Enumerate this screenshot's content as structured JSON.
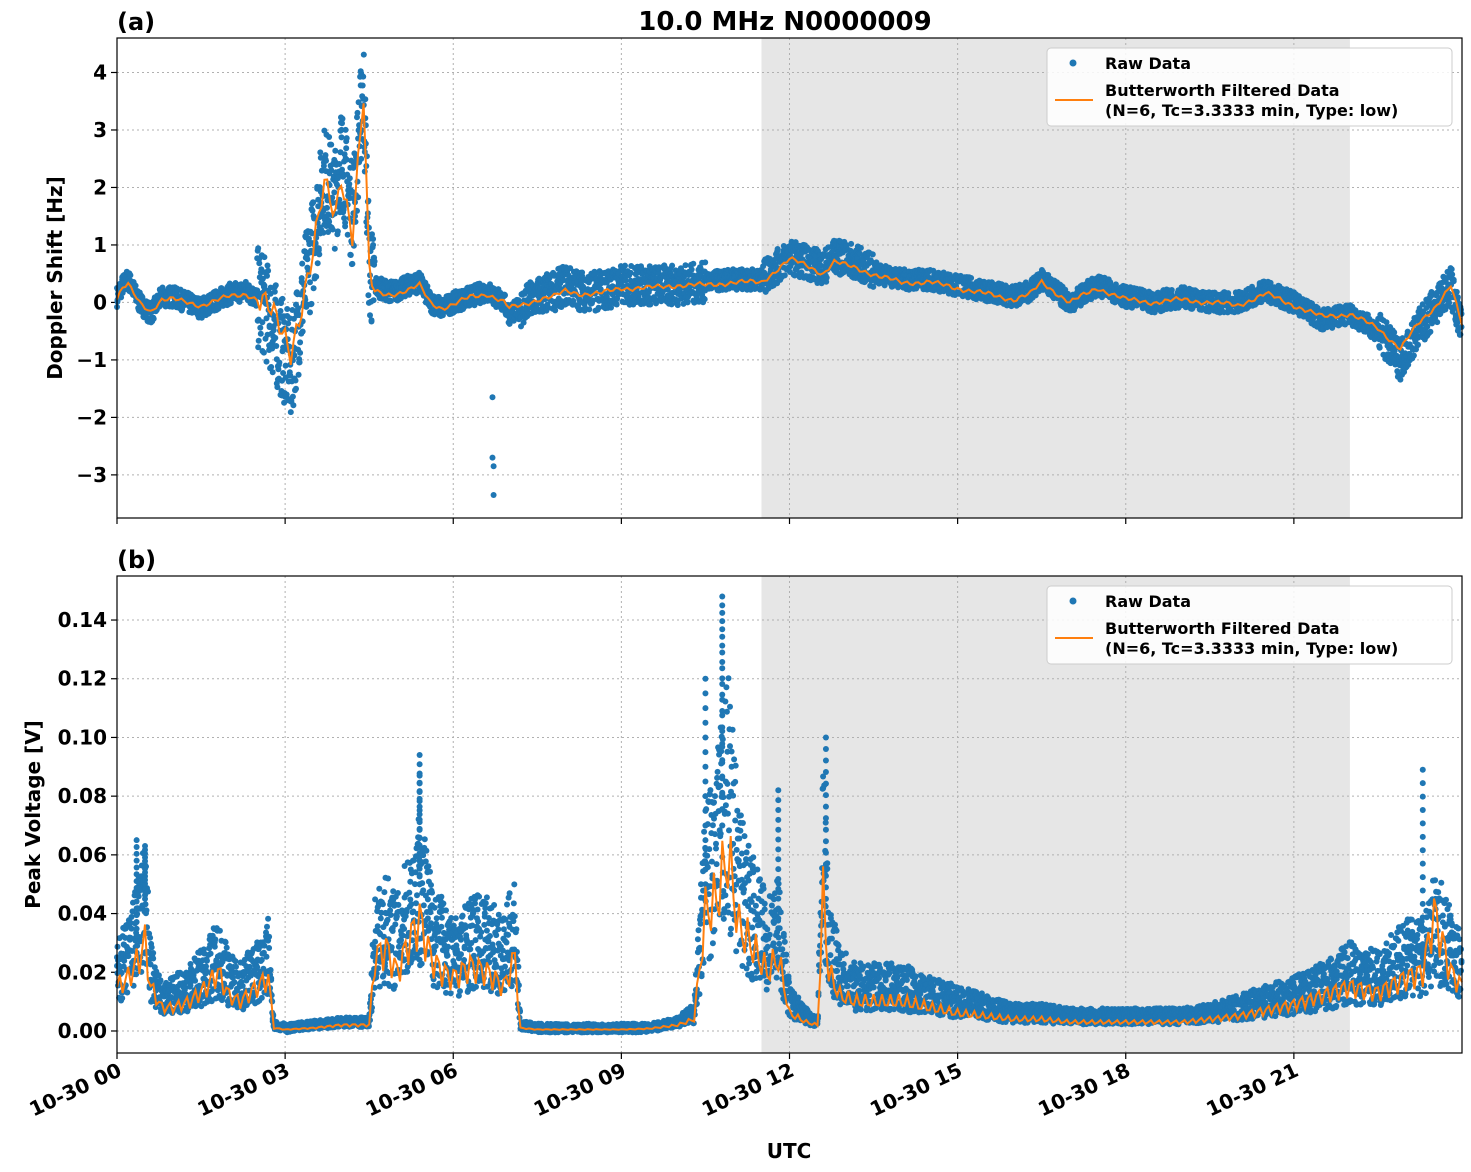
{
  "figure": {
    "title": "10.0 MHz N0000009",
    "xlabel": "UTC"
  },
  "chart_data": [
    {
      "type": "line",
      "panel_label": "(a)",
      "title": "10.0 MHz N0000009",
      "xlabel": "UTC",
      "ylabel": "Doppler Shift [Hz]",
      "x_unit": "hours since 10-30 00 UTC",
      "xlim": [
        0,
        24
      ],
      "ylim": [
        -3.75,
        4.6
      ],
      "yticks": [
        -3,
        -2,
        -1,
        0,
        1,
        2,
        3,
        4
      ],
      "ytick_labels": [
        "−3",
        "−2",
        "−1",
        "0",
        "1",
        "2",
        "3",
        "4"
      ],
      "grid": true,
      "legend_position": "top-right",
      "shaded_region": [
        11.5,
        22.0
      ],
      "series": [
        {
          "name": "Raw Data",
          "style": "scatter",
          "color": "#1f77b4",
          "x": [
            0,
            0.1,
            0.2,
            0.4,
            0.6,
            0.8,
            1.0,
            1.5,
            2.0,
            2.3,
            2.6,
            2.8,
            3.0,
            3.1,
            3.3,
            3.5,
            3.7,
            3.9,
            4.0,
            4.2,
            4.4,
            4.5,
            4.6,
            4.8,
            5.0,
            5.2,
            5.4,
            5.6,
            5.8,
            6.0,
            6.3,
            6.6,
            6.9,
            7.0,
            7.2,
            7.5,
            7.8,
            8.0,
            8.3,
            8.6,
            9.0,
            9.5,
            10.0,
            10.5,
            11.0,
            11.5,
            12.0,
            12.3,
            12.6,
            12.8,
            13.2,
            13.6,
            14.0,
            14.5,
            15.0,
            15.5,
            16.0,
            16.3,
            16.5,
            17.0,
            17.5,
            18.0,
            18.5,
            19.0,
            19.5,
            20.0,
            20.5,
            21.0,
            21.5,
            22.0,
            22.5,
            22.9,
            23.2,
            23.5,
            23.8,
            24.0
          ],
          "y": [
            0.1,
            0.3,
            0.4,
            0.0,
            -0.2,
            0.1,
            0.1,
            -0.1,
            0.15,
            0.2,
            0.0,
            -0.5,
            -0.9,
            -1.2,
            0.0,
            1.0,
            2.2,
            1.8,
            2.6,
            1.5,
            3.8,
            0.5,
            0.3,
            0.2,
            0.2,
            0.3,
            0.35,
            0.0,
            -0.1,
            0.0,
            0.1,
            0.2,
            0.0,
            -0.2,
            -0.1,
            0.1,
            0.2,
            0.3,
            0.2,
            0.2,
            0.3,
            0.3,
            0.3,
            0.35,
            0.4,
            0.4,
            0.8,
            0.7,
            0.6,
            0.8,
            0.7,
            0.5,
            0.4,
            0.4,
            0.3,
            0.2,
            0.1,
            0.2,
            0.4,
            0.0,
            0.3,
            0.1,
            0.0,
            0.1,
            0.0,
            0.0,
            0.2,
            0.0,
            -0.3,
            -0.2,
            -0.5,
            -1.0,
            -0.5,
            -0.1,
            0.3,
            -0.5
          ],
          "outliers_x": [
            6.7,
            6.7,
            6.72,
            6.72
          ],
          "outliers_y": [
            -1.65,
            -2.7,
            -2.85,
            -3.35
          ]
        },
        {
          "name": "Butterworth Filtered Data\n(N=6, Tc=3.3333 min, Type: low)",
          "style": "line",
          "color": "#ff7f0e",
          "x": [
            0,
            0.1,
            0.2,
            0.4,
            0.6,
            0.8,
            1.0,
            1.5,
            2.0,
            2.3,
            2.6,
            2.8,
            3.0,
            3.1,
            3.3,
            3.5,
            3.7,
            3.9,
            4.0,
            4.2,
            4.4,
            4.5,
            4.6,
            4.8,
            5.0,
            5.2,
            5.4,
            5.6,
            5.8,
            6.0,
            6.3,
            6.6,
            6.9,
            7.0,
            7.2,
            7.5,
            7.8,
            8.0,
            8.3,
            8.6,
            9.0,
            9.5,
            10.0,
            10.5,
            11.0,
            11.5,
            12.0,
            12.3,
            12.6,
            12.8,
            13.2,
            13.6,
            14.0,
            14.5,
            15.0,
            15.5,
            16.0,
            16.3,
            16.5,
            17.0,
            17.5,
            18.0,
            18.5,
            19.0,
            19.5,
            20.0,
            20.5,
            21.0,
            21.5,
            22.0,
            22.5,
            22.9,
            23.2,
            23.5,
            23.8,
            24.0
          ],
          "y": [
            0.05,
            0.25,
            0.3,
            0.0,
            -0.15,
            0.05,
            0.05,
            -0.05,
            0.1,
            0.15,
            0.0,
            -0.3,
            -0.6,
            -0.8,
            0.0,
            0.8,
            2.0,
            1.6,
            2.3,
            1.2,
            3.5,
            0.4,
            0.2,
            0.15,
            0.15,
            0.2,
            0.3,
            0.0,
            -0.1,
            -0.05,
            0.1,
            0.15,
            0.0,
            -0.1,
            -0.05,
            0.05,
            0.1,
            0.2,
            0.15,
            0.15,
            0.25,
            0.25,
            0.3,
            0.3,
            0.35,
            0.35,
            0.75,
            0.65,
            0.5,
            0.7,
            0.6,
            0.45,
            0.35,
            0.35,
            0.25,
            0.15,
            0.05,
            0.15,
            0.35,
            0.0,
            0.25,
            0.05,
            0.0,
            0.05,
            0.0,
            -0.05,
            0.15,
            -0.05,
            -0.25,
            -0.2,
            -0.45,
            -0.8,
            -0.4,
            -0.1,
            0.3,
            -0.4
          ]
        }
      ]
    },
    {
      "type": "line",
      "panel_label": "(b)",
      "xlabel": "UTC",
      "ylabel": "Peak Voltage [V]",
      "x_unit": "hours since 10-30 00 UTC",
      "xlim": [
        0,
        24
      ],
      "ylim": [
        -0.0075,
        0.155
      ],
      "yticks": [
        0.0,
        0.02,
        0.04,
        0.06,
        0.08,
        0.1,
        0.12,
        0.14
      ],
      "ytick_labels": [
        "0.00",
        "0.02",
        "0.04",
        "0.06",
        "0.08",
        "0.10",
        "0.12",
        "0.14"
      ],
      "grid": true,
      "legend_position": "top-right",
      "shaded_region": [
        11.5,
        22.0
      ],
      "xticks": [
        0,
        3,
        6,
        9,
        12,
        15,
        18,
        21
      ],
      "xtick_labels": [
        "10-30 00",
        "10-30 03",
        "10-30 06",
        "10-30 09",
        "10-30 12",
        "10-30 15",
        "10-30 18",
        "10-30 21"
      ],
      "series": [
        {
          "name": "Raw Data",
          "style": "scatter",
          "color": "#1f77b4",
          "x": [
            0,
            0.2,
            0.4,
            0.5,
            0.6,
            0.8,
            1.0,
            1.3,
            1.6,
            1.8,
            2.0,
            2.2,
            2.5,
            2.7,
            2.8,
            3.0,
            3.5,
            4.0,
            4.5,
            4.6,
            4.8,
            5.0,
            5.2,
            5.4,
            5.6,
            5.8,
            6.0,
            6.3,
            6.6,
            6.9,
            7.1,
            7.2,
            7.5,
            8.0,
            8.5,
            9.0,
            9.5,
            10.0,
            10.3,
            10.5,
            10.7,
            10.9,
            11.1,
            11.3,
            11.6,
            11.8,
            12.0,
            12.3,
            12.5,
            12.6,
            12.7,
            12.9,
            13.2,
            13.6,
            14.0,
            14.5,
            15.0,
            15.5,
            16.0,
            16.5,
            17.0,
            17.5,
            18.0,
            18.5,
            19.0,
            19.5,
            20.0,
            20.5,
            21.0,
            21.5,
            22.0,
            22.5,
            23.0,
            23.3,
            23.5,
            23.8,
            24.0
          ],
          "y": [
            0.02,
            0.025,
            0.035,
            0.045,
            0.02,
            0.01,
            0.012,
            0.015,
            0.02,
            0.025,
            0.018,
            0.015,
            0.02,
            0.025,
            0.002,
            0.001,
            0.002,
            0.003,
            0.003,
            0.03,
            0.035,
            0.03,
            0.04,
            0.05,
            0.035,
            0.03,
            0.025,
            0.03,
            0.03,
            0.025,
            0.035,
            0.002,
            0.001,
            0.001,
            0.001,
            0.001,
            0.001,
            0.003,
            0.006,
            0.05,
            0.06,
            0.08,
            0.05,
            0.04,
            0.03,
            0.035,
            0.01,
            0.005,
            0.003,
            0.06,
            0.03,
            0.02,
            0.015,
            0.015,
            0.015,
            0.012,
            0.01,
            0.008,
            0.006,
            0.006,
            0.005,
            0.005,
            0.005,
            0.005,
            0.005,
            0.006,
            0.008,
            0.01,
            0.012,
            0.015,
            0.02,
            0.018,
            0.025,
            0.025,
            0.035,
            0.03,
            0.02
          ],
          "spikes_x": [
            0.35,
            0.5,
            5.4,
            5.4,
            10.8,
            10.8,
            10.5,
            11.8,
            12.65,
            23.3
          ],
          "spikes_y": [
            0.065,
            0.063,
            0.094,
            0.087,
            0.148,
            0.145,
            0.12,
            0.082,
            0.1,
            0.089
          ]
        },
        {
          "name": "Butterworth Filtered Data\n(N=6, Tc=3.3333 min, Type: low)",
          "style": "line",
          "color": "#ff7f0e",
          "x": [
            0,
            0.2,
            0.4,
            0.5,
            0.6,
            0.8,
            1.0,
            1.3,
            1.6,
            1.8,
            2.0,
            2.2,
            2.5,
            2.7,
            2.8,
            3.0,
            3.5,
            4.0,
            4.5,
            4.6,
            4.8,
            5.0,
            5.2,
            5.4,
            5.6,
            5.8,
            6.0,
            6.3,
            6.6,
            6.9,
            7.1,
            7.2,
            7.5,
            8.0,
            8.5,
            9.0,
            9.5,
            10.0,
            10.3,
            10.5,
            10.7,
            10.9,
            11.1,
            11.3,
            11.6,
            11.8,
            12.0,
            12.3,
            12.5,
            12.6,
            12.7,
            12.9,
            13.2,
            13.6,
            14.0,
            14.5,
            15.0,
            15.5,
            16.0,
            16.5,
            17.0,
            17.5,
            18.0,
            18.5,
            19.0,
            19.5,
            20.0,
            20.5,
            21.0,
            21.5,
            22.0,
            22.5,
            23.0,
            23.3,
            23.5,
            23.8,
            24.0
          ],
          "y": [
            0.015,
            0.018,
            0.025,
            0.03,
            0.015,
            0.008,
            0.008,
            0.01,
            0.015,
            0.02,
            0.012,
            0.01,
            0.015,
            0.018,
            0.001,
            0.0005,
            0.001,
            0.002,
            0.002,
            0.025,
            0.028,
            0.02,
            0.03,
            0.038,
            0.025,
            0.02,
            0.018,
            0.022,
            0.02,
            0.015,
            0.025,
            0.001,
            0.0005,
            0.0005,
            0.0005,
            0.0005,
            0.0008,
            0.002,
            0.004,
            0.04,
            0.045,
            0.06,
            0.035,
            0.03,
            0.02,
            0.025,
            0.006,
            0.003,
            0.002,
            0.045,
            0.02,
            0.012,
            0.01,
            0.01,
            0.01,
            0.008,
            0.006,
            0.005,
            0.004,
            0.004,
            0.003,
            0.003,
            0.003,
            0.003,
            0.003,
            0.004,
            0.005,
            0.007,
            0.009,
            0.012,
            0.015,
            0.013,
            0.018,
            0.02,
            0.04,
            0.02,
            0.015
          ]
        }
      ]
    }
  ]
}
